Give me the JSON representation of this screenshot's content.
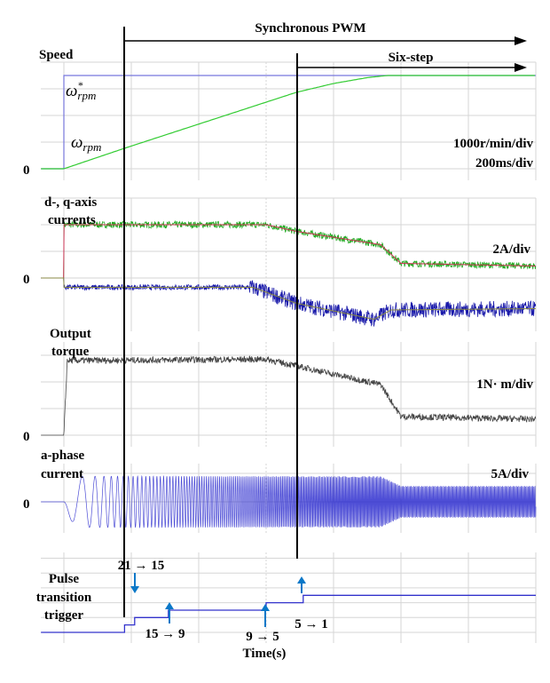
{
  "chart_data": {
    "type": "line",
    "xlabel": "Time(s)",
    "time_scale": "200ms/div",
    "grid": true,
    "regions": [
      {
        "label": "Synchronous PWM",
        "start_t": 0.179
      },
      {
        "label": "Six-step",
        "start_t": 0.692
      }
    ],
    "panels": [
      {
        "id": "speed",
        "title": "Speed",
        "scale": "1000r/min/div",
        "scale2": "200ms/div",
        "zero_label": "0",
        "unit_per_div": 1000,
        "series": [
          {
            "name": "ω*rpm",
            "color": "#7777dd",
            "points": [
              [
                -0.068,
                0
              ],
              [
                0,
                0
              ],
              [
                0,
                3500
              ],
              [
                1.4,
                3500
              ]
            ]
          },
          {
            "name": "ωrpm",
            "color": "#33cc33",
            "points": [
              [
                -0.068,
                0
              ],
              [
                0,
                0
              ],
              [
                0.18,
                770
              ],
              [
                0.6,
                2500
              ],
              [
                0.69,
                2870
              ],
              [
                0.8,
                3200
              ],
              [
                0.9,
                3420
              ],
              [
                0.96,
                3500
              ],
              [
                1.4,
                3500
              ]
            ]
          }
        ]
      },
      {
        "id": "dq",
        "title": "d-, q-axis currents",
        "scale": "2A/div",
        "zero_label": "0",
        "unit_per_div": 2,
        "series": [
          {
            "name": "q-axis",
            "color": "#22aa22",
            "ref_color": "#cc3355",
            "noise": 0.25,
            "points": [
              [
                -0.068,
                0
              ],
              [
                0,
                0
              ],
              [
                0,
                4
              ],
              [
                0.6,
                4
              ],
              [
                0.69,
                3.5
              ],
              [
                0.94,
                2.5
              ],
              [
                1.0,
                1.1
              ],
              [
                1.4,
                0.9
              ]
            ]
          },
          {
            "name": "d-axis",
            "color": "#1a1aaa",
            "ref_color": "#888844",
            "noise": 0.2,
            "noise_late": 0.6,
            "points": [
              [
                -0.068,
                0
              ],
              [
                0,
                0
              ],
              [
                0,
                -0.7
              ],
              [
                0.56,
                -0.7
              ],
              [
                0.69,
                -1.9
              ],
              [
                0.92,
                -3.1
              ],
              [
                0.97,
                -2.4
              ],
              [
                1.4,
                -2.3
              ]
            ]
          }
        ]
      },
      {
        "id": "torque",
        "title": "Output torque",
        "scale": "1N· m/div",
        "zero_label": "0",
        "unit_per_div": 1,
        "series": [
          {
            "name": "torque",
            "color": "#444444",
            "noise": 0.12,
            "points": [
              [
                -0.068,
                0
              ],
              [
                0,
                0
              ],
              [
                0.01,
                2.8
              ],
              [
                0.6,
                2.85
              ],
              [
                0.69,
                2.6
              ],
              [
                0.94,
                1.9
              ],
              [
                1.0,
                0.7
              ],
              [
                1.4,
                0.6
              ]
            ]
          }
        ]
      },
      {
        "id": "ia",
        "title": "a-phase current",
        "scale": "5A/div",
        "zero_label": "0",
        "unit_per_div": 5,
        "series": [
          {
            "name": "ia",
            "color": "#2222cc",
            "pole_pairs": 5,
            "amplitude_points": [
              [
                -0.068,
                0
              ],
              [
                0,
                0
              ],
              [
                0.03,
                4.5
              ],
              [
                0.94,
                4.5
              ],
              [
                1.0,
                2.8
              ],
              [
                1.4,
                2.8
              ]
            ]
          }
        ]
      },
      {
        "id": "pulse",
        "title": "Pulse transition trigger",
        "unit_per_div": 1,
        "series": [
          {
            "name": "trigger",
            "color": "#3333cc",
            "steps": [
              [
                -0.068,
                0
              ],
              [
                0.18,
                0.5
              ],
              [
                0.21,
                1
              ],
              [
                0.31,
                1.5
              ],
              [
                0.6,
                2
              ],
              [
                0.71,
                2.5
              ],
              [
                1.4,
                2.5
              ]
            ]
          }
        ],
        "annotations": [
          {
            "text": "21 → 15",
            "t": 0.21,
            "direction": "down"
          },
          {
            "text": "15 → 9",
            "t": 0.31,
            "direction": "up"
          },
          {
            "text": "9 → 5",
            "t": 0.6,
            "direction": "up"
          },
          {
            "text": "5 → 1",
            "t": 0.71,
            "direction": "up"
          }
        ]
      }
    ],
    "colors": {
      "arrow": "#0a78c8",
      "marker_line": "#000000"
    }
  },
  "labels": {
    "speed_title": "Speed",
    "wref": "ω",
    "wref_sup": "*",
    "wref_sub": "rpm",
    "w": "ω",
    "w_sub": "rpm",
    "dq_title_1": "d-, q-axis",
    "dq_title_2": "currents",
    "torque_title_1": "Output",
    "torque_title_2": "torque",
    "ia_title_1": "a-phase",
    "ia_title_2": "current",
    "pulse_title_1": "Pulse",
    "pulse_title_2": "transition",
    "pulse_title_3": "trigger"
  }
}
